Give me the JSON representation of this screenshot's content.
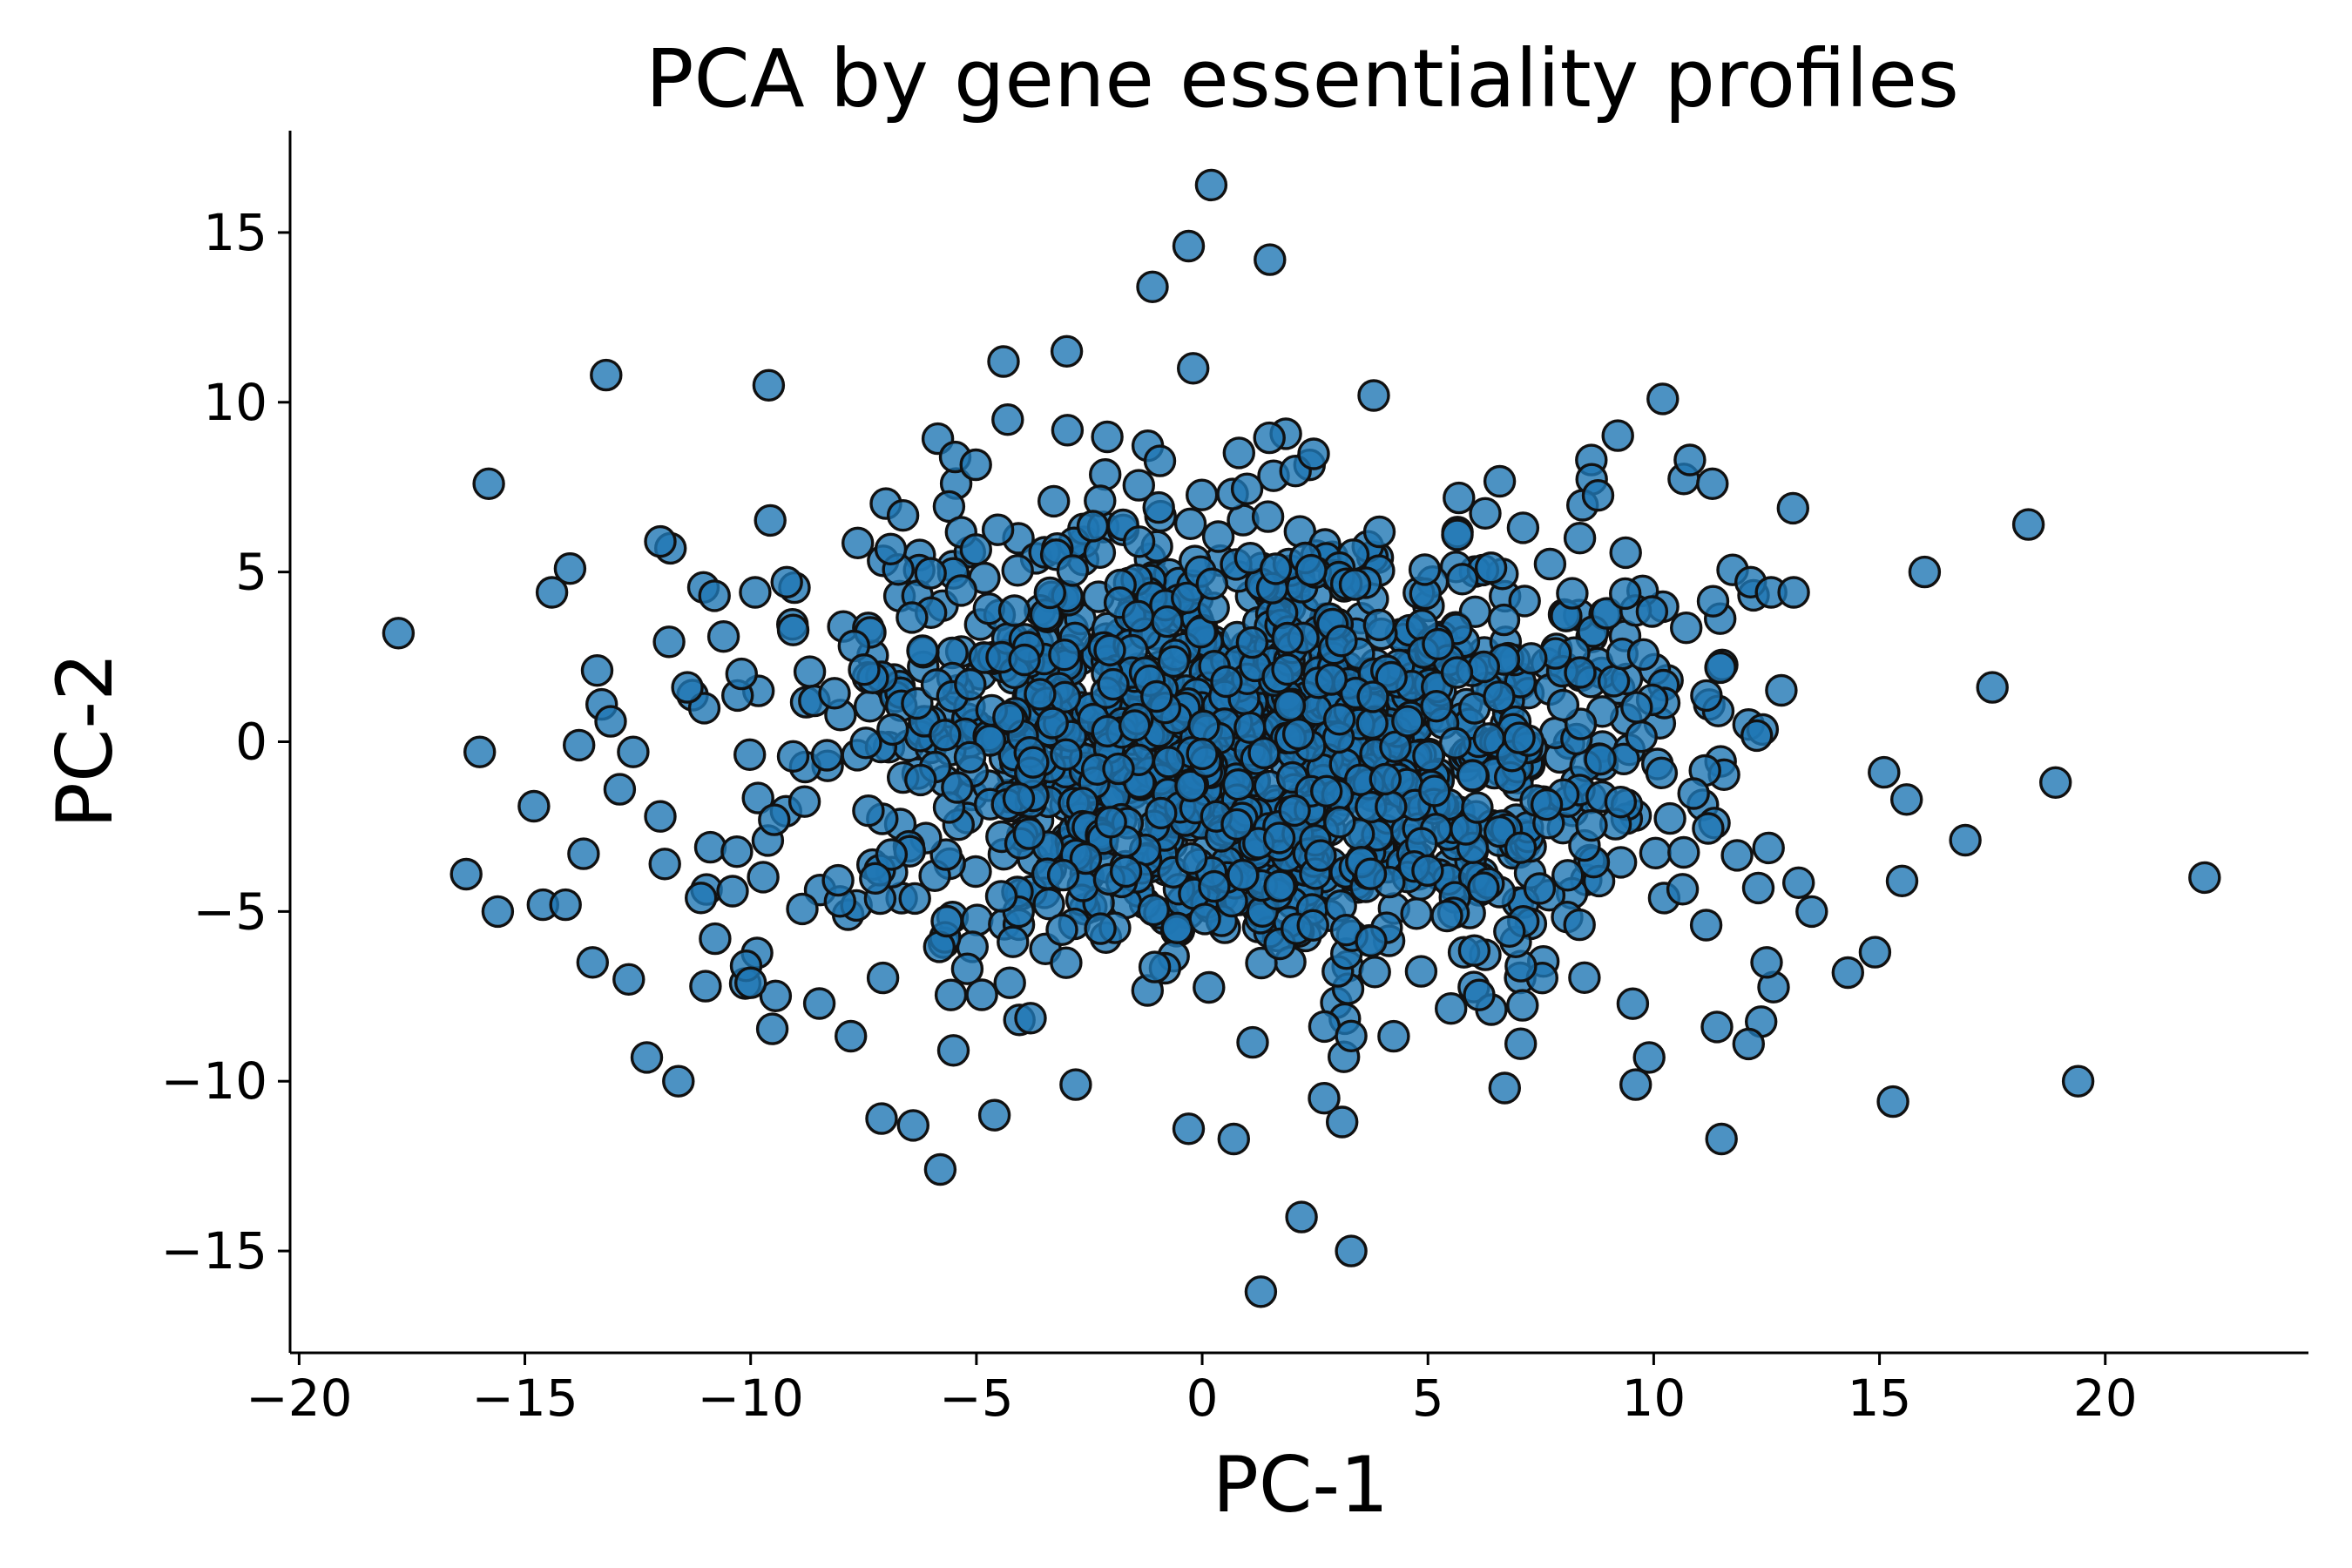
{
  "chart_data": {
    "type": "scatter",
    "title": "PCA by gene essentiality profiles",
    "xlabel": "PC-1",
    "ylabel": "PC-2",
    "xlim": [
      -20.2,
      24.5
    ],
    "ylim": [
      -18,
      18
    ],
    "xticks": [
      -20,
      -15,
      -10,
      -5,
      0,
      5,
      10,
      15,
      20
    ],
    "yticks": [
      -15,
      -10,
      -5,
      0,
      5,
      10,
      15
    ],
    "xtick_labels": [
      "−20",
      "−15",
      "−10",
      "−5",
      "0",
      "5",
      "10",
      "15",
      "20"
    ],
    "ytick_labels": [
      "−15",
      "−10",
      "−5",
      "0",
      "5",
      "10",
      "15"
    ],
    "grid": false,
    "legend": "none",
    "marker_color": "#1f77b4",
    "marker_alpha": 0.8,
    "marker_edge_color": "#111111",
    "outliers": [
      {
        "x": -17.8,
        "y": 3.2
      },
      {
        "x": -16.3,
        "y": -3.9
      },
      {
        "x": -16.0,
        "y": -0.3
      },
      {
        "x": -15.8,
        "y": 7.6
      },
      {
        "x": -15.6,
        "y": -5.0
      },
      {
        "x": -14.8,
        "y": -1.9
      },
      {
        "x": -14.6,
        "y": -4.8
      },
      {
        "x": -14.4,
        "y": 4.4
      },
      {
        "x": -14.1,
        "y": -4.8
      },
      {
        "x": -14.0,
        "y": 5.1
      },
      {
        "x": -13.8,
        "y": -0.1
      },
      {
        "x": -13.7,
        "y": -3.3
      },
      {
        "x": -13.5,
        "y": -6.5
      },
      {
        "x": -13.4,
        "y": 2.1
      },
      {
        "x": -13.3,
        "y": 1.1
      },
      {
        "x": -13.2,
        "y": 10.8
      },
      {
        "x": -13.1,
        "y": 0.6
      },
      {
        "x": -12.9,
        "y": -1.4
      },
      {
        "x": -12.6,
        "y": -0.3
      },
      {
        "x": -12.7,
        "y": -7.0
      },
      {
        "x": -12.3,
        "y": -9.3
      },
      {
        "x": -12.0,
        "y": -2.2
      },
      {
        "x": -11.9,
        "y": -3.6
      },
      {
        "x": -12.0,
        "y": 5.9
      },
      {
        "x": -11.6,
        "y": -10.0
      },
      {
        "x": -11.4,
        "y": 1.6
      },
      {
        "x": -11.1,
        "y": -4.6
      },
      {
        "x": -11.0,
        "y": -7.2
      },
      {
        "x": -10.8,
        "y": 4.3
      },
      {
        "x": -10.6,
        "y": 3.1
      },
      {
        "x": -10.4,
        "y": -4.4
      },
      {
        "x": -10.2,
        "y": 2.0
      },
      {
        "x": -10.1,
        "y": -6.6
      },
      {
        "x": -10.0,
        "y": -7.1
      },
      {
        "x": -9.9,
        "y": 4.4
      },
      {
        "x": -9.6,
        "y": 10.5
      },
      {
        "x": -9.2,
        "y": 4.7
      },
      {
        "x": -7.1,
        "y": -11.1
      },
      {
        "x": -6.4,
        "y": -11.3
      },
      {
        "x": -5.8,
        "y": -12.6
      },
      {
        "x": -4.6,
        "y": -11.0
      },
      {
        "x": -4.4,
        "y": 11.2
      },
      {
        "x": -3.0,
        "y": 11.5
      },
      {
        "x": -2.8,
        "y": -10.1
      },
      {
        "x": -1.1,
        "y": 13.4
      },
      {
        "x": -0.3,
        "y": 14.6
      },
      {
        "x": -0.2,
        "y": 11.0
      },
      {
        "x": 0.2,
        "y": 16.4
      },
      {
        "x": 1.5,
        "y": 14.2
      },
      {
        "x": -0.3,
        "y": -11.4
      },
      {
        "x": 0.7,
        "y": -11.7
      },
      {
        "x": 1.3,
        "y": -16.2
      },
      {
        "x": 2.2,
        "y": -14.0
      },
      {
        "x": 3.3,
        "y": -15.0
      },
      {
        "x": 2.7,
        "y": -10.5
      },
      {
        "x": 3.1,
        "y": -11.2
      },
      {
        "x": 3.8,
        "y": 10.2
      },
      {
        "x": 6.7,
        "y": -10.2
      },
      {
        "x": 9.6,
        "y": -10.1
      },
      {
        "x": 9.9,
        "y": -9.3
      },
      {
        "x": 10.2,
        "y": 10.1
      },
      {
        "x": 10.8,
        "y": 8.3
      },
      {
        "x": 11.3,
        "y": 7.6
      },
      {
        "x": 11.5,
        "y": -11.7
      },
      {
        "x": 11.4,
        "y": -8.4
      },
      {
        "x": 12.1,
        "y": -8.9
      },
      {
        "x": 12.5,
        "y": -6.5
      },
      {
        "x": 12.6,
        "y": 4.4
      },
      {
        "x": 13.1,
        "y": 4.4
      },
      {
        "x": 13.5,
        "y": -5.0
      },
      {
        "x": 14.3,
        "y": -6.8
      },
      {
        "x": 14.9,
        "y": -6.2
      },
      {
        "x": 15.1,
        "y": -0.9
      },
      {
        "x": 15.3,
        "y": -10.6
      },
      {
        "x": 15.5,
        "y": -4.1
      },
      {
        "x": 15.6,
        "y": -1.7
      },
      {
        "x": 16.0,
        "y": 5.0
      },
      {
        "x": 16.9,
        "y": -2.9
      },
      {
        "x": 17.5,
        "y": 1.6
      },
      {
        "x": 18.3,
        "y": 6.4
      },
      {
        "x": 18.9,
        "y": -1.2
      },
      {
        "x": 19.4,
        "y": -10.0
      },
      {
        "x": 22.2,
        "y": -4.0
      }
    ],
    "core_cluster": {
      "approx_point_count": 1500,
      "center": {
        "x": 1.0,
        "y": -0.2
      },
      "std": {
        "x": 4.9,
        "y": 3.5
      }
    }
  }
}
